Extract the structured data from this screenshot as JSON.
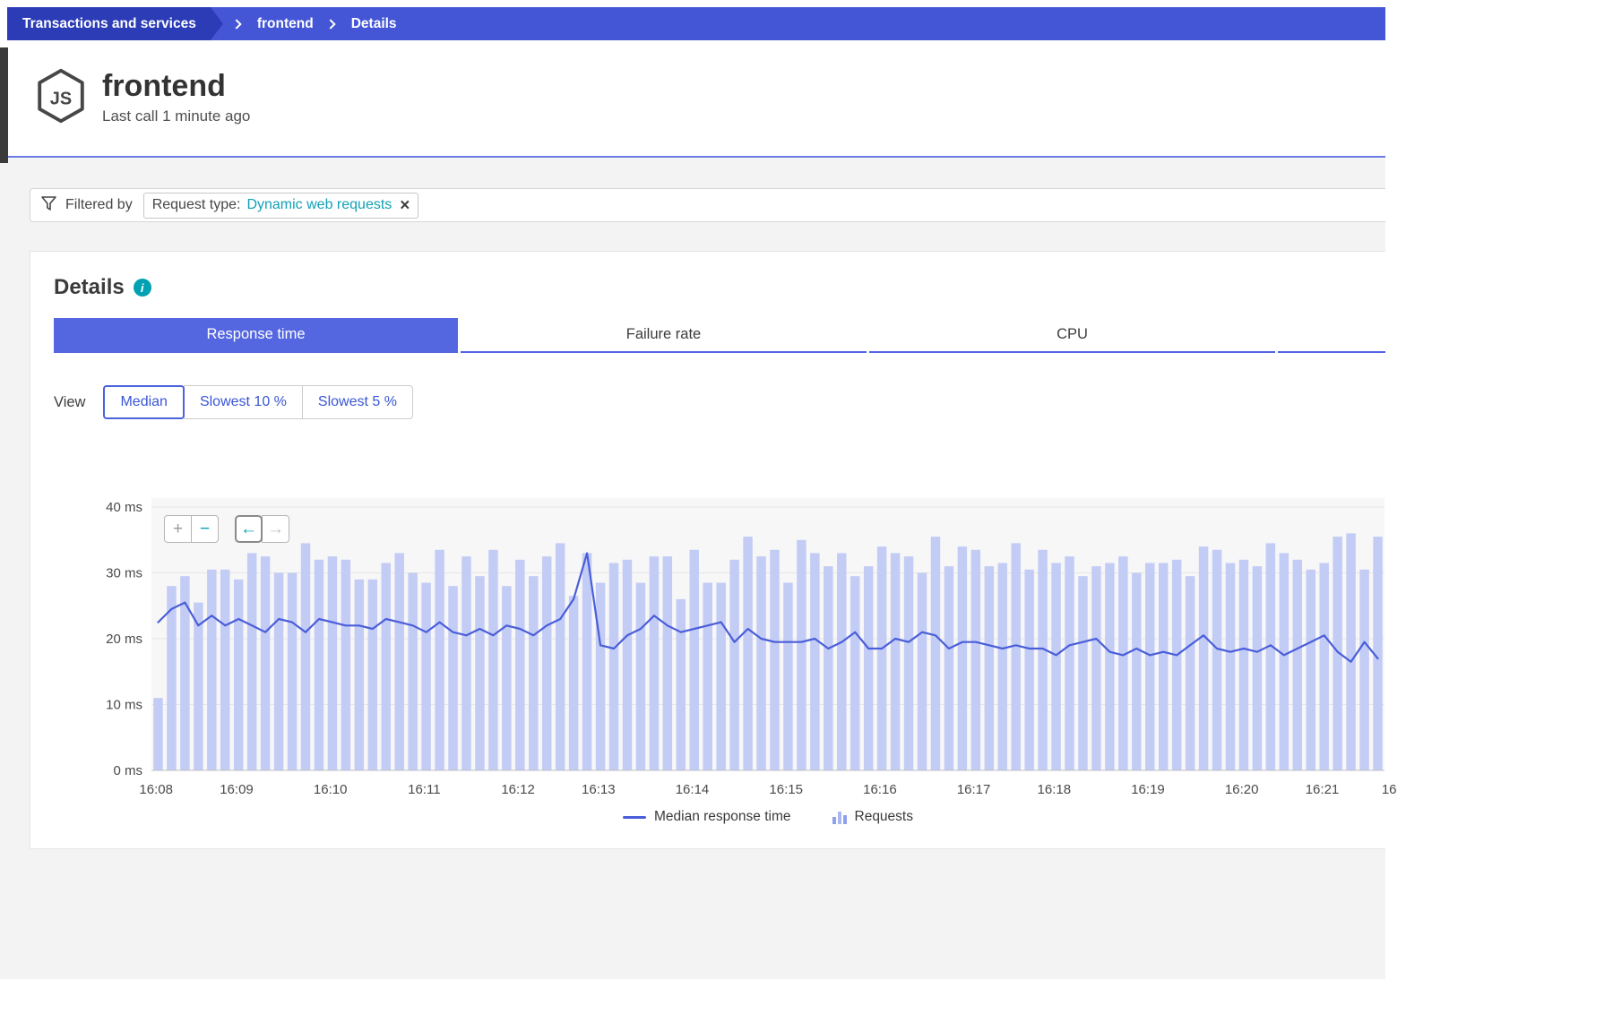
{
  "breadcrumb": {
    "items": [
      {
        "label": "Transactions and services"
      },
      {
        "label": "frontend"
      },
      {
        "label": "Details"
      }
    ]
  },
  "header": {
    "title": "frontend",
    "subtitle": "Last call 1 minute ago",
    "icon": "nodejs-icon"
  },
  "filter_bar": {
    "label": "Filtered by",
    "chip": {
      "key": "Request type:",
      "value": "Dynamic web requests",
      "remove_icon": "close-icon"
    }
  },
  "details": {
    "heading": "Details",
    "info_icon": "info-icon"
  },
  "tabs": [
    {
      "label": "Response time",
      "active": true
    },
    {
      "label": "Failure rate",
      "active": false
    },
    {
      "label": "CPU",
      "active": false
    },
    {
      "label": "",
      "active": false
    }
  ],
  "view_selector": {
    "label": "View",
    "options": [
      {
        "label": "Median",
        "selected": true
      },
      {
        "label": "Slowest 10 %",
        "selected": false
      },
      {
        "label": "Slowest 5 %",
        "selected": false
      }
    ]
  },
  "chart_controls": {
    "zoom_in": "+",
    "zoom_out": "−",
    "pan_back": "←",
    "pan_forward": "→"
  },
  "chart_data": {
    "type": "bar+line",
    "title": "",
    "xlabel": "",
    "ylabel": "ms",
    "ylim": [
      0,
      40
    ],
    "grid": true,
    "y_ticks": [
      {
        "value": 0,
        "label": "0 ms"
      },
      {
        "value": 10,
        "label": "10 ms"
      },
      {
        "value": 20,
        "label": "20 ms"
      },
      {
        "value": 30,
        "label": "30 ms"
      },
      {
        "value": 40,
        "label": "40 ms"
      }
    ],
    "x_ticks": [
      {
        "label": "16:08",
        "bar_index": 0
      },
      {
        "label": "16:09",
        "bar_index": 6
      },
      {
        "label": "16:10",
        "bar_index": 13
      },
      {
        "label": "16:11",
        "bar_index": 20
      },
      {
        "label": "16:12",
        "bar_index": 27
      },
      {
        "label": "16:13",
        "bar_index": 33
      },
      {
        "label": "16:14",
        "bar_index": 40
      },
      {
        "label": "16:15",
        "bar_index": 47
      },
      {
        "label": "16:16",
        "bar_index": 54
      },
      {
        "label": "16:17",
        "bar_index": 61
      },
      {
        "label": "16:18",
        "bar_index": 67
      },
      {
        "label": "16:19",
        "bar_index": 74
      },
      {
        "label": "16:20",
        "bar_index": 81
      },
      {
        "label": "16:21",
        "bar_index": 87
      },
      {
        "label": "16",
        "bar_index": 92
      }
    ],
    "series": [
      {
        "name": "Requests",
        "type": "bar",
        "values": [
          11,
          28,
          29.5,
          25.5,
          30.5,
          30.5,
          29,
          33,
          32.5,
          30,
          30,
          34.5,
          32,
          32.5,
          32,
          29,
          29,
          31.5,
          33,
          30,
          28.5,
          33.5,
          28,
          32.5,
          29.5,
          33.5,
          28,
          32,
          29.5,
          32.5,
          34.5,
          26.5,
          33,
          28.5,
          31.5,
          32,
          28.5,
          32.5,
          32.5,
          26,
          33.5,
          28.5,
          28.5,
          32,
          35.5,
          32.5,
          33.5,
          28.5,
          35,
          33,
          31,
          33,
          29.5,
          31,
          34,
          33,
          32.5,
          30,
          35.5,
          31,
          34,
          33.5,
          31,
          31.5,
          34.5,
          30.5,
          33.5,
          31.5,
          32.5,
          29.5,
          31,
          31.5,
          32.5,
          30,
          31.5,
          31.5,
          32,
          29.5,
          34,
          33.5,
          31.5,
          32,
          31,
          34.5,
          33,
          32,
          30.5,
          31.5,
          35.5,
          36,
          30.5,
          35.5
        ]
      },
      {
        "name": "Median response time",
        "type": "line",
        "unit": "ms",
        "values": [
          22.5,
          24.5,
          25.5,
          22,
          23.5,
          22,
          23,
          22,
          21,
          23,
          22.5,
          21,
          23,
          22.5,
          22,
          22,
          21.5,
          23,
          22.5,
          22,
          21,
          22.5,
          21,
          20.5,
          21.5,
          20.5,
          22,
          21.5,
          20.5,
          22,
          23,
          26,
          33,
          19,
          18.5,
          20.5,
          21.5,
          23.5,
          22,
          21,
          21.5,
          22,
          22.5,
          19.5,
          21.5,
          20,
          19.5,
          19.5,
          19.5,
          20,
          18.5,
          19.5,
          21,
          18.5,
          18.5,
          20,
          19.5,
          21,
          20.5,
          18.5,
          19.5,
          19.5,
          19,
          18.5,
          19,
          18.5,
          18.5,
          17.5,
          19,
          19.5,
          20,
          18,
          17.5,
          18.5,
          17.5,
          18,
          17.5,
          19,
          20.5,
          18.5,
          18,
          18.5,
          18,
          19,
          17.5,
          18.5,
          19.5,
          20.5,
          18,
          16.5,
          19.5,
          17
        ]
      }
    ],
    "legend_position": "bottom-center"
  },
  "legend": {
    "items": [
      {
        "label": "Median response time",
        "swatch": "line"
      },
      {
        "label": "Requests",
        "swatch": "bars"
      }
    ]
  },
  "colors": {
    "breadcrumb_bar": "#4456d6",
    "breadcrumb_primary": "#2b3cb6",
    "accent_blue": "#5467e0",
    "tab_underline": "#5264e4",
    "link_blue": "#3a56d4",
    "teal": "#00a1b2",
    "chip_value": "#11a0b4",
    "bar_fill": "#c3ccf4",
    "line_stroke": "#4a5ed9",
    "plot_bg": "#f7f7f8",
    "grid_line": "#e6e6e8",
    "axis_line": "#c2c2c4",
    "axis_text": "#4a4a4a",
    "divider": "#6b7ae5"
  }
}
